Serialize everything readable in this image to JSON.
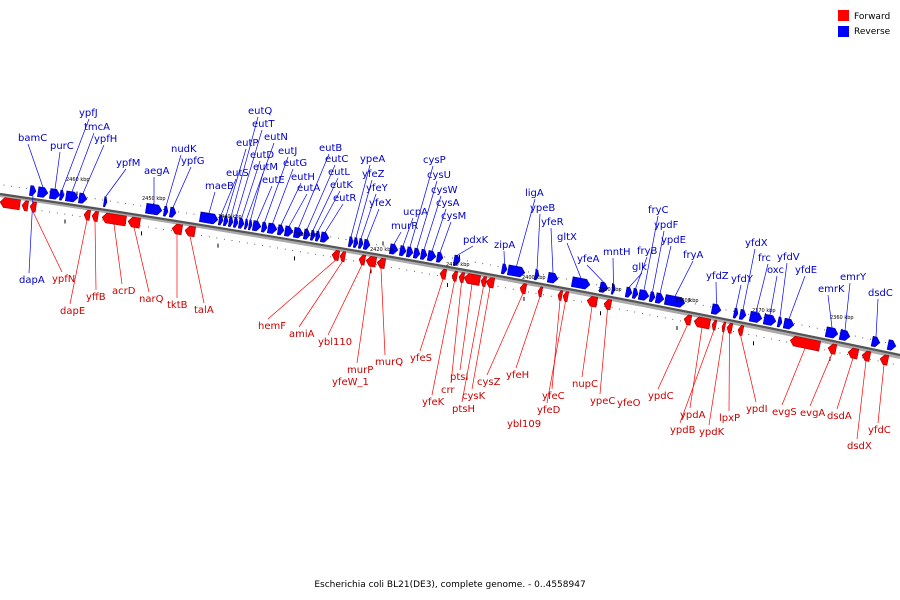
{
  "caption": "Escherichia coli BL21(DE3), complete genome. - 0..4558947",
  "legend": [
    {
      "label": "Forward",
      "color": "#ff0000"
    },
    {
      "label": "Reverse",
      "color": "#0000ff"
    }
  ],
  "colors": {
    "forward": "#ff0000",
    "reverse": "#0000ff",
    "forward_label": "#cc0000",
    "reverse_label": "#0000cc"
  },
  "ticks": [
    "2460 kbp",
    "2450 kbp",
    "2440 kbp",
    "2430 kbp",
    "2420 kbp",
    "2410 kbp",
    "2400 kbp",
    "2390 kbp",
    "2380 kbp",
    "2370 kbp",
    "2360 kbp"
  ],
  "reverse_genes": [
    "bamC",
    "purC",
    "ypfJ",
    "tmcA",
    "ypfH",
    "ypfM",
    "aegA",
    "nudK",
    "ypfG",
    "maeB",
    "eutS",
    "eutP",
    "eutQ",
    "eutT",
    "eutD",
    "eutN",
    "eutM",
    "eutE",
    "eutJ",
    "eutG",
    "eutH",
    "eutA",
    "eutB",
    "eutC",
    "eutL",
    "eutK",
    "eutR",
    "ypeA",
    "yfeZ",
    "yfeY",
    "yfeX",
    "murR",
    "ucpA",
    "cysP",
    "cysU",
    "cysW",
    "cysA",
    "cysM",
    "pdxK",
    "zipA",
    "ligA",
    "ypeB",
    "yfeR",
    "gltX",
    "yfeA",
    "mntH",
    "glk",
    "fryB",
    "fryC",
    "ypdF",
    "ypdE",
    "fryA",
    "yfdZ",
    "yfdY",
    "yfdX",
    "frc",
    "oxc",
    "yfdV",
    "yfdE",
    "emrK",
    "emrY",
    "dsdC",
    "dapA"
  ],
  "forward_genes": [
    "ypfN",
    "dapE",
    "yffB",
    "acrD",
    "narQ",
    "tktB",
    "talA",
    "hemF",
    "amiA",
    "ybl110",
    "murP",
    "yfeW_1",
    "murQ",
    "yfeS",
    "yfeK",
    "crr",
    "ptsI",
    "ptsH",
    "cysK",
    "cysZ",
    "yfeH",
    "ybl109",
    "yfeC",
    "yfeD",
    "nupC",
    "ypeC",
    "yfeO",
    "ypdC",
    "ypdA",
    "ypdB",
    "ypdK",
    "lpxP",
    "ypdI",
    "evgS",
    "evgA",
    "dsdA",
    "dsdX",
    "yfdC"
  ]
}
